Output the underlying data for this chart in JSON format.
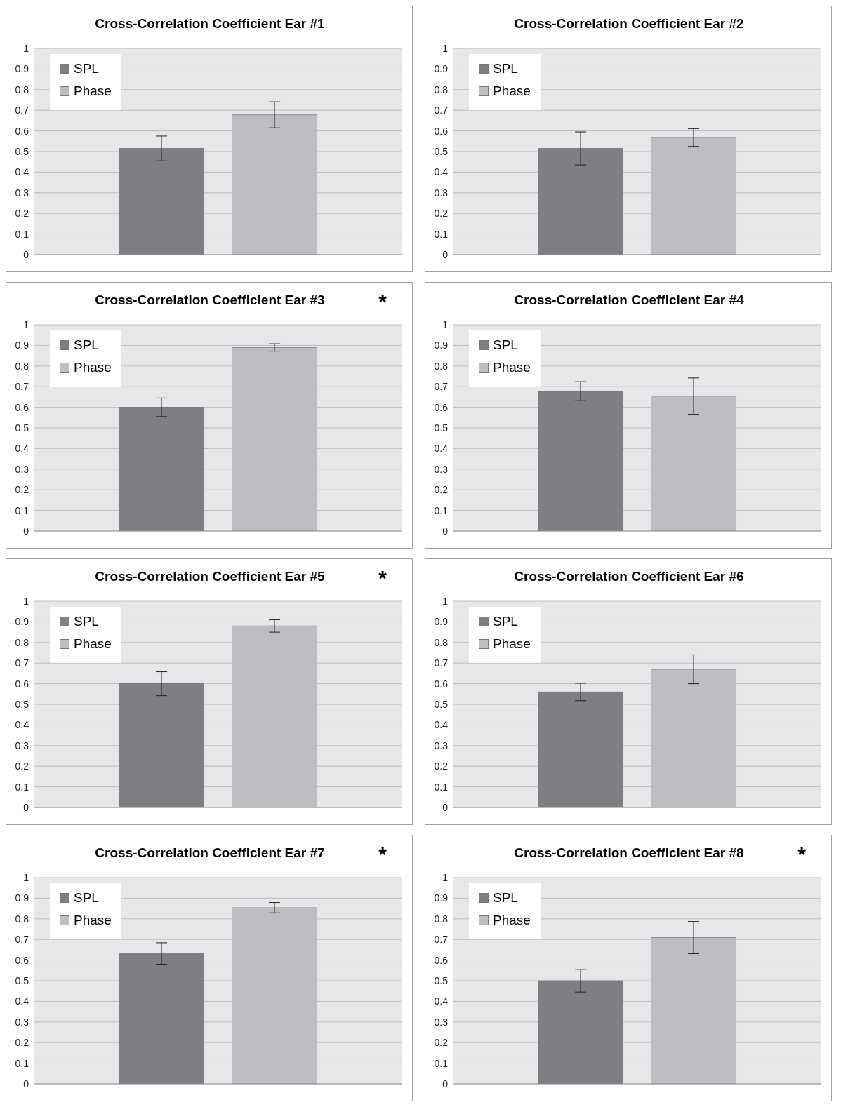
{
  "chart_data": [
    {
      "type": "bar",
      "title": "Cross-Correlation Coefficient Ear #1",
      "categories": [
        null
      ],
      "series": [
        {
          "name": "SPL",
          "color": "#7f7f83",
          "values": [
            0.515
          ],
          "errors": [
            0.06
          ]
        },
        {
          "name": "Phase",
          "color": "#bdbec2",
          "values": [
            0.678
          ],
          "errors": [
            0.063
          ]
        }
      ],
      "ylim": [
        0,
        1
      ],
      "yticks": [
        0,
        0.1,
        0.2,
        0.3,
        0.4,
        0.5,
        0.6,
        0.7,
        0.8,
        0.9,
        1
      ],
      "grid": "y",
      "legend": "top left"
    },
    {
      "type": "bar",
      "title": "Cross-Correlation Coefficient Ear #2",
      "categories": [
        null
      ],
      "series": [
        {
          "name": "SPL",
          "color": "#7f7f83",
          "values": [
            0.515
          ],
          "errors": [
            0.08
          ]
        },
        {
          "name": "Phase",
          "color": "#bdbec2",
          "values": [
            0.568
          ],
          "errors": [
            0.043
          ]
        }
      ],
      "ylim": [
        0,
        1
      ],
      "yticks": [
        0,
        0.1,
        0.2,
        0.3,
        0.4,
        0.5,
        0.6,
        0.7,
        0.8,
        0.9,
        1
      ],
      "grid": "y",
      "legend": "top left"
    },
    {
      "type": "bar",
      "title": "Cross-Correlation Coefficient Ear #3",
      "annotations": [
        "*"
      ],
      "categories": [
        null
      ],
      "series": [
        {
          "name": "SPL",
          "color": "#7f7f83",
          "values": [
            0.6
          ],
          "errors": [
            0.045
          ]
        },
        {
          "name": "Phase",
          "color": "#bdbec2",
          "values": [
            0.89
          ],
          "errors": [
            0.018
          ]
        }
      ],
      "ylim": [
        0,
        1
      ],
      "yticks": [
        0,
        0.1,
        0.2,
        0.3,
        0.4,
        0.5,
        0.6,
        0.7,
        0.8,
        0.9,
        1
      ],
      "grid": "y",
      "legend": "top left"
    },
    {
      "type": "bar",
      "title": "Cross-Correlation Coefficient Ear #4",
      "categories": [
        null
      ],
      "series": [
        {
          "name": "SPL",
          "color": "#7f7f83",
          "values": [
            0.678
          ],
          "errors": [
            0.046
          ]
        },
        {
          "name": "Phase",
          "color": "#bdbec2",
          "values": [
            0.654
          ],
          "errors": [
            0.088
          ]
        }
      ],
      "ylim": [
        0,
        1
      ],
      "yticks": [
        0,
        0.1,
        0.2,
        0.3,
        0.4,
        0.5,
        0.6,
        0.7,
        0.8,
        0.9,
        1
      ],
      "grid": "y",
      "legend": "top left"
    },
    {
      "type": "bar",
      "title": "Cross-Correlation Coefficient Ear #5",
      "annotations": [
        "*"
      ],
      "categories": [
        null
      ],
      "series": [
        {
          "name": "SPL",
          "color": "#7f7f83",
          "values": [
            0.6
          ],
          "errors": [
            0.058
          ]
        },
        {
          "name": "Phase",
          "color": "#bdbec2",
          "values": [
            0.88
          ],
          "errors": [
            0.03
          ]
        }
      ],
      "ylim": [
        0,
        1
      ],
      "yticks": [
        0,
        0.1,
        0.2,
        0.3,
        0.4,
        0.5,
        0.6,
        0.7,
        0.8,
        0.9,
        1
      ],
      "grid": "y",
      "legend": "top left"
    },
    {
      "type": "bar",
      "title": "Cross-Correlation Coefficient Ear #6",
      "categories": [
        null
      ],
      "series": [
        {
          "name": "SPL",
          "color": "#7f7f83",
          "values": [
            0.56
          ],
          "errors": [
            0.042
          ]
        },
        {
          "name": "Phase",
          "color": "#bdbec2",
          "values": [
            0.67
          ],
          "errors": [
            0.07
          ]
        }
      ],
      "ylim": [
        0,
        1
      ],
      "yticks": [
        0,
        0.1,
        0.2,
        0.3,
        0.4,
        0.5,
        0.6,
        0.7,
        0.8,
        0.9,
        1
      ],
      "grid": "y",
      "legend": "top left"
    },
    {
      "type": "bar",
      "title": "Cross-Correlation Coefficient Ear #7",
      "annotations": [
        "*"
      ],
      "categories": [
        null
      ],
      "series": [
        {
          "name": "SPL",
          "color": "#7f7f83",
          "values": [
            0.632
          ],
          "errors": [
            0.052
          ]
        },
        {
          "name": "Phase",
          "color": "#bdbec2",
          "values": [
            0.854
          ],
          "errors": [
            0.025
          ]
        }
      ],
      "ylim": [
        0,
        1
      ],
      "yticks": [
        0,
        0.1,
        0.2,
        0.3,
        0.4,
        0.5,
        0.6,
        0.7,
        0.8,
        0.9,
        1
      ],
      "grid": "y",
      "legend": "top left"
    },
    {
      "type": "bar",
      "title": "Cross-Correlation Coefficient Ear #8",
      "annotations": [
        "*"
      ],
      "categories": [
        null
      ],
      "series": [
        {
          "name": "SPL",
          "color": "#7f7f83",
          "values": [
            0.5
          ],
          "errors": [
            0.055
          ]
        },
        {
          "name": "Phase",
          "color": "#bdbec2",
          "values": [
            0.709
          ],
          "errors": [
            0.078
          ]
        }
      ],
      "ylim": [
        0,
        1
      ],
      "yticks": [
        0,
        0.1,
        0.2,
        0.3,
        0.4,
        0.5,
        0.6,
        0.7,
        0.8,
        0.9,
        1
      ],
      "grid": "y",
      "legend": "top left"
    }
  ]
}
